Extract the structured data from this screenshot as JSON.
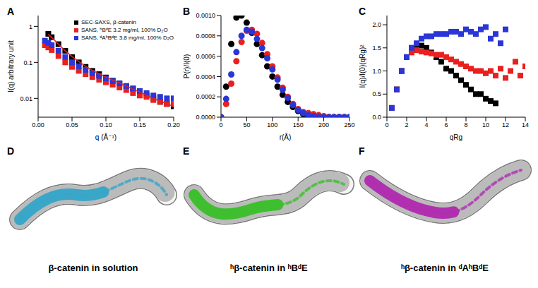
{
  "chart_data": [
    {
      "title": "A",
      "type": "scatter",
      "x_label": "q (Å⁻¹)",
      "y_label": "I(q) arbitrary unit",
      "log": "y",
      "legend": "upper right",
      "x": [
        0.01,
        0.015,
        0.02,
        0.03,
        0.04,
        0.05,
        0.06,
        0.07,
        0.08,
        0.09,
        0.1,
        0.11,
        0.12,
        0.13,
        0.14,
        0.15,
        0.16,
        0.17,
        0.18,
        0.19,
        0.2
      ],
      "xlim": [
        0,
        0.2
      ],
      "xticks": [
        {
          "value": 0,
          "label": "0.00"
        },
        {
          "value": 0.05,
          "label": "0.05"
        },
        {
          "value": 0.1,
          "label": "0.10"
        },
        {
          "value": 0.15,
          "label": "0.15"
        },
        {
          "value": 0.2,
          "label": "0.20"
        }
      ],
      "ylim": [
        0.003,
        2
      ],
      "yticks": [
        0.01,
        0.1,
        1
      ],
      "series": [
        {
          "name": "SEC-SAXS, β-catenin",
          "color": "#000000",
          "marker": "square",
          "values": [
            null,
            0.62,
            0.5,
            0.32,
            0.21,
            0.14,
            0.1,
            0.075,
            0.058,
            0.047,
            0.038,
            0.031,
            0.026,
            0.022,
            0.018,
            0.015,
            0.012,
            0.01,
            0.008,
            0.007,
            0.006
          ]
        },
        {
          "name": "SANS, ʰBᵈE 3.2 mg/ml, 100% D₂O",
          "color": "#e8201f",
          "marker": "square",
          "values": [
            0.3,
            0.26,
            0.22,
            0.15,
            0.1,
            0.075,
            0.058,
            0.047,
            0.039,
            0.033,
            0.028,
            0.024,
            0.02,
            0.017,
            0.014,
            0.012,
            0.011,
            0.009,
            0.008,
            0.007,
            0.007
          ]
        },
        {
          "name": "SANS, ᵈAʰBᵈE 3.8 mg/ml, 100% D₂O",
          "color": "#2a36d6",
          "marker": "square",
          "values": [
            0.4,
            0.35,
            0.3,
            0.21,
            0.14,
            0.1,
            0.078,
            0.062,
            0.05,
            0.042,
            0.036,
            0.03,
            0.026,
            0.022,
            0.019,
            0.016,
            0.014,
            0.012,
            0.011,
            0.01,
            0.01
          ]
        },
        {
          "type": "line",
          "color": "#e8201f",
          "line_style": "solid",
          "values": [
            null,
            0.6,
            0.49,
            0.32,
            0.21,
            0.145,
            0.105,
            0.078,
            0.06,
            0.048,
            0.039,
            0.032,
            0.027,
            0.022,
            0.018,
            0.015,
            0.012,
            0.01,
            0.0085,
            0.007,
            0.006
          ]
        }
      ]
    },
    {
      "title": "B",
      "type": "scatter",
      "x_label": "r(Å)",
      "y_label": "P(r)/I(0)",
      "x": [
        0,
        10,
        20,
        30,
        40,
        50,
        60,
        70,
        80,
        90,
        100,
        110,
        120,
        130,
        140,
        150,
        160,
        170,
        180,
        190,
        200,
        210,
        220,
        230,
        240,
        250
      ],
      "xlim": [
        0,
        250
      ],
      "xticks": [
        0,
        50,
        100,
        150,
        200,
        250
      ],
      "ylim": [
        0,
        0.001
      ],
      "yticks": [
        {
          "value": 0,
          "label": "0.0000"
        },
        {
          "value": 0.0002,
          "label": "0.0002"
        },
        {
          "value": 0.0004,
          "label": "0.0004"
        },
        {
          "value": 0.0006,
          "label": "0.0006"
        },
        {
          "value": 0.0008,
          "label": "0.0008"
        },
        {
          "value": 0.001,
          "label": "0.0010"
        }
      ],
      "series": [
        {
          "color": "#000000",
          "marker": "circle",
          "values": [
            0,
            0.0003,
            0.00072,
            0.00098,
            0.001,
            0.00093,
            0.00083,
            0.00072,
            0.00061,
            0.0005,
            0.0004,
            0.0003,
            0.00022,
            0.00015,
            0.0001,
            6e-05,
            3e-05,
            1e-05,
            0,
            0,
            0,
            0,
            0,
            0,
            0,
            0
          ]
        },
        {
          "color": "#e8201f",
          "marker": "circle",
          "values": [
            0,
            0.00013,
            0.00033,
            0.00055,
            0.00074,
            0.00085,
            0.00086,
            0.00082,
            0.00073,
            0.00062,
            0.0005,
            0.00039,
            0.00029,
            0.0002,
            0.00013,
            8e-05,
            5e-05,
            4e-05,
            3e-05,
            2e-05,
            1e-05,
            0,
            0,
            0,
            0,
            0
          ]
        },
        {
          "color": "#2a36d6",
          "marker": "circle",
          "values": [
            0,
            0.00018,
            0.00042,
            0.00064,
            0.0008,
            0.00086,
            0.00084,
            0.00077,
            0.00068,
            0.00058,
            0.00047,
            0.00037,
            0.00027,
            0.00019,
            0.00012,
            7e-05,
            4e-05,
            2e-05,
            1e-05,
            0,
            0,
            0,
            0,
            0,
            0,
            0
          ]
        }
      ]
    },
    {
      "title": "C",
      "type": "scatter",
      "x_label": "qRg",
      "y_label": "I(q)/I(0)(qRg)²",
      "x": [
        0.5,
        1,
        1.5,
        2,
        2.5,
        3,
        3.5,
        4,
        4.5,
        5,
        5.5,
        6,
        6.5,
        7,
        7.5,
        8,
        8.5,
        9,
        9.5,
        10,
        10.5,
        11,
        11.5,
        12,
        12.5,
        13,
        13.5,
        14
      ],
      "xlim": [
        0,
        14
      ],
      "xticks": [
        0,
        2,
        4,
        6,
        8,
        10,
        12,
        14
      ],
      "ylim": [
        0,
        2.2
      ],
      "yticks": [
        {
          "value": 0,
          "label": "0.0"
        },
        {
          "value": 0.5,
          "label": "0.5"
        },
        {
          "value": 1,
          "label": "1.0"
        },
        {
          "value": 1.5,
          "label": "1.5"
        },
        {
          "value": 2,
          "label": "2.0"
        }
      ],
      "series": [
        {
          "color": "#000000",
          "marker": "square",
          "values": [
            0.2,
            0.6,
            1.0,
            1.3,
            1.5,
            1.55,
            1.55,
            1.5,
            1.4,
            1.3,
            1.2,
            1.05,
            1.0,
            0.9,
            0.8,
            0.7,
            0.6,
            0.5,
            0.5,
            0.4,
            0.35,
            0.3,
            null,
            null,
            null,
            null,
            null,
            null
          ]
        },
        {
          "color": "#e8201f",
          "marker": "square",
          "values": [
            0.2,
            0.6,
            1.0,
            1.3,
            1.4,
            1.45,
            1.42,
            1.4,
            1.38,
            1.35,
            1.35,
            1.3,
            1.25,
            1.2,
            1.15,
            1.1,
            1.05,
            1.0,
            1.0,
            0.95,
            1.0,
            0.9,
            1.05,
            0.85,
            1.0,
            1.2,
            0.9,
            1.1
          ]
        },
        {
          "color": "#2a36d6",
          "marker": "square",
          "values": [
            0.2,
            0.6,
            1.0,
            1.3,
            1.5,
            1.6,
            1.7,
            1.75,
            1.75,
            1.8,
            1.8,
            1.8,
            1.85,
            1.85,
            1.8,
            1.9,
            1.85,
            1.8,
            1.9,
            1.95,
            1.7,
            1.8,
            1.6,
            1.9,
            null,
            null,
            null,
            null
          ]
        }
      ]
    }
  ],
  "images": [
    {
      "title": "D",
      "caption": "β-catenin in solution",
      "color": "#3aa6c8"
    },
    {
      "title": "E",
      "caption": "ʰβ-catenin in ʰBᵈE",
      "color": "#3fbf2f"
    },
    {
      "title": "F",
      "caption": "ʰβ-catenin in ᵈAʰBᵈE",
      "color": "#b030b0"
    }
  ]
}
